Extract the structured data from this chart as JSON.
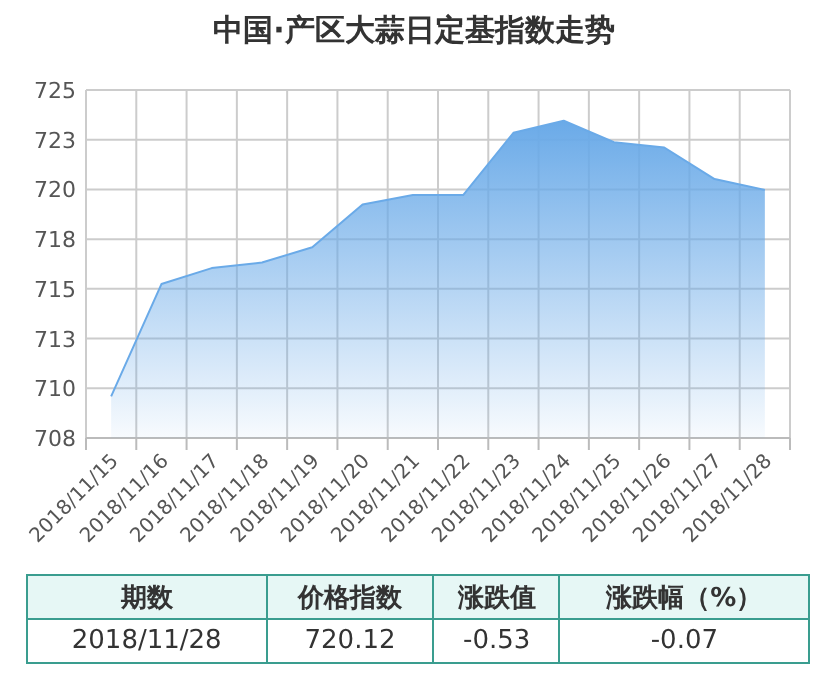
{
  "chart_data": {
    "type": "area",
    "title": "中国·产区大蒜日定基指数走势",
    "categories": [
      "2018/11/15",
      "2018/11/16",
      "2018/11/17",
      "2018/11/18",
      "2018/11/19",
      "2018/11/20",
      "2018/11/21",
      "2018/11/22",
      "2018/11/23",
      "2018/11/24",
      "2018/11/25",
      "2018/11/26",
      "2018/11/27",
      "2018/11/28"
    ],
    "values": [
      710.03,
      715.52,
      716.3,
      716.57,
      717.32,
      719.41,
      719.87,
      719.87,
      722.91,
      723.5,
      722.45,
      722.19,
      720.65,
      720.12
    ],
    "color": "#6aaae8",
    "ylim": [
      708,
      725
    ],
    "yticks": [
      708,
      {
        "value": 710.43,
        "label": "710"
      },
      {
        "value": 712.86,
        "label": "713"
      },
      {
        "value": 715.29,
        "label": "715"
      },
      {
        "value": 717.71,
        "label": "718"
      },
      {
        "value": 720.14,
        "label": "720"
      },
      {
        "value": 722.57,
        "label": "723"
      },
      725
    ],
    "grid": true,
    "annotations": [
      "期数",
      "价格指数",
      "涨跌值",
      "涨跌幅（%）",
      "2018/11/28",
      "720.12",
      "-0.53",
      "-0.07"
    ]
  }
}
